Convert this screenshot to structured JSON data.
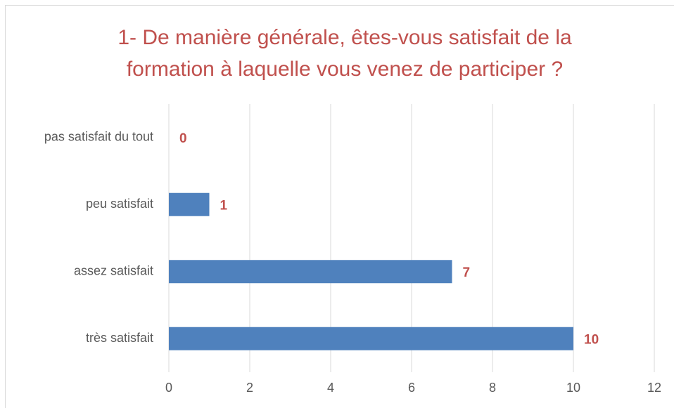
{
  "chart_data": {
    "type": "bar",
    "orientation": "horizontal",
    "title": [
      "1- De manière générale, êtes-vous satisfait de la",
      "formation à laquelle vous venez de participer ?"
    ],
    "categories": [
      "pas satisfait du tout",
      "peu satisfait",
      "assez satisfait",
      "très satisfait"
    ],
    "values": [
      0,
      1,
      7,
      10
    ],
    "color": "#4f81bd",
    "label_color": "#c0504d",
    "title_color": "#c0504d",
    "xlim": [
      0,
      12
    ],
    "xticks": [
      0,
      2,
      4,
      6,
      8,
      10,
      12
    ],
    "grid": true
  }
}
